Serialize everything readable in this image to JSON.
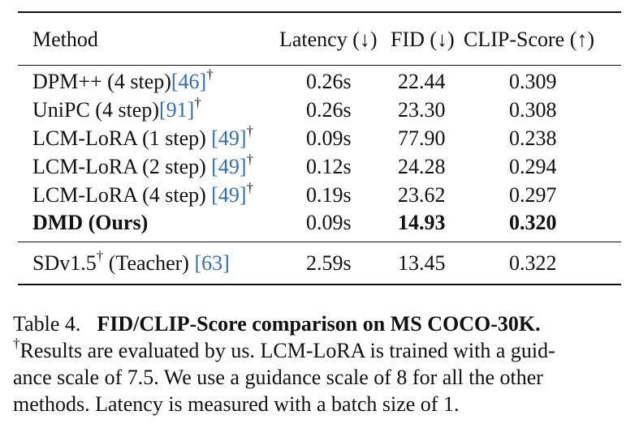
{
  "table": {
    "headers": {
      "method": "Method",
      "latency": "Latency (↓)",
      "fid": "FID (↓)",
      "clip": "CLIP-Score (↑)"
    },
    "rows": [
      {
        "name": "DPM++ (4 step)",
        "cite": "[46]",
        "mark": "†",
        "latency": "0.26s",
        "fid": "22.44",
        "clip": "0.309"
      },
      {
        "name": "UniPC (4 step)",
        "cite": "[91]",
        "mark": "†",
        "latency": "0.26s",
        "fid": "23.30",
        "clip": "0.308"
      },
      {
        "name": "LCM-LoRA (1 step) ",
        "cite": "[49]",
        "mark": "†",
        "latency": "0.09s",
        "fid": "77.90",
        "clip": "0.238"
      },
      {
        "name": "LCM-LoRA (2 step) ",
        "cite": "[49]",
        "mark": "†",
        "latency": "0.12s",
        "fid": "24.28",
        "clip": "0.294"
      },
      {
        "name": "LCM-LoRA (4 step) ",
        "cite": "[49]",
        "mark": "†",
        "latency": "0.19s",
        "fid": "23.62",
        "clip": "0.297"
      },
      {
        "name": "DMD (Ours)",
        "cite": "",
        "mark": "",
        "latency": "0.09s",
        "fid": "14.93",
        "clip": "0.320"
      }
    ],
    "teacher": {
      "name_a": "SDv1.5",
      "mark": "†",
      "name_b": " (Teacher) ",
      "cite": "[63]",
      "latency": "2.59s",
      "fid": "13.45",
      "clip": "0.322"
    }
  },
  "caption": {
    "label": "Table 4.",
    "title": "FID/CLIP-Score comparison on MS COCO-30K.",
    "mark": "†",
    "line2": "Results are evaluated by us. LCM-LoRA is trained with a guid-",
    "line3": "ance scale of 7.5. We use a guidance scale of 8 for all the other",
    "line4": "methods. Latency is measured with a batch size of 1."
  }
}
